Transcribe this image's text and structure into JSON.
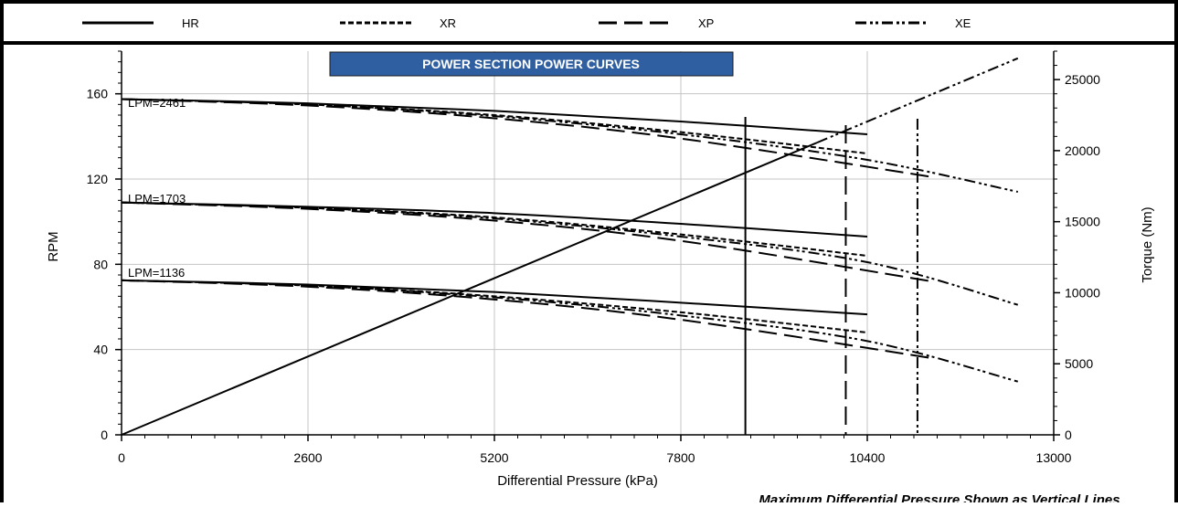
{
  "chart_data": {
    "type": "line",
    "title": "POWER SECTION POWER CURVES",
    "xlabel": "Differential Pressure (kPa)",
    "ylabel": "RPM",
    "y2label": "Torque (Nm)",
    "xlim": [
      0,
      13000
    ],
    "ylim": [
      0,
      180
    ],
    "y2lim": [
      0,
      27000
    ],
    "xticks": [
      0,
      2600,
      5200,
      7800,
      10400,
      13000
    ],
    "yticks": [
      0,
      40,
      80,
      120,
      160
    ],
    "y2ticks": [
      0,
      5000,
      10000,
      15000,
      20000,
      25000
    ],
    "grid": true,
    "legend_position": "top",
    "legend": [
      {
        "name": "HR",
        "dash": "solid"
      },
      {
        "name": "XR",
        "dash": "short-dash"
      },
      {
        "name": "XP",
        "dash": "long-dash"
      },
      {
        "name": "XE",
        "dash": "dash-dot-dot"
      }
    ],
    "flow_labels": [
      "LPM=2461",
      "LPM=1703",
      "LPM=1136"
    ],
    "rpm_curves": [
      {
        "model": "HR",
        "flow": "LPM=2461",
        "x": [
          0,
          2600,
          5200,
          7800,
          10400
        ],
        "y": [
          157.5,
          155.5,
          152,
          147,
          141
        ]
      },
      {
        "model": "XR",
        "flow": "LPM=2461",
        "x": [
          0,
          2600,
          5200,
          7800,
          10400
        ],
        "y": [
          157.5,
          155,
          150,
          142,
          132
        ]
      },
      {
        "model": "XP",
        "flow": "LPM=2461",
        "x": [
          0,
          2600,
          5200,
          7800,
          11300
        ],
        "y": [
          157.5,
          154.5,
          148.5,
          139,
          121
        ]
      },
      {
        "model": "XE",
        "flow": "LPM=2461",
        "x": [
          0,
          2600,
          5200,
          7800,
          10400,
          12500
        ],
        "y": [
          157.5,
          155,
          149.5,
          141,
          129,
          114
        ]
      },
      {
        "model": "HR",
        "flow": "LPM=1703",
        "x": [
          0,
          2600,
          5200,
          7800,
          10400
        ],
        "y": [
          109,
          107,
          104,
          99,
          93
        ]
      },
      {
        "model": "XR",
        "flow": "LPM=1703",
        "x": [
          0,
          2600,
          5200,
          7800,
          10400
        ],
        "y": [
          109,
          106.5,
          102,
          94,
          84
        ]
      },
      {
        "model": "XP",
        "flow": "LPM=1703",
        "x": [
          0,
          2600,
          5200,
          7800,
          11300
        ],
        "y": [
          109,
          106,
          100.5,
          91,
          72
        ]
      },
      {
        "model": "XE",
        "flow": "LPM=1703",
        "x": [
          0,
          2600,
          5200,
          7800,
          10400,
          12500
        ],
        "y": [
          109,
          106.5,
          101.5,
          93,
          81,
          61
        ]
      },
      {
        "model": "HR",
        "flow": "LPM=1136",
        "x": [
          0,
          2600,
          5200,
          7800,
          10400
        ],
        "y": [
          72.5,
          70.5,
          67,
          62,
          56.5
        ]
      },
      {
        "model": "XR",
        "flow": "LPM=1136",
        "x": [
          0,
          2600,
          5200,
          7800,
          10400
        ],
        "y": [
          72.5,
          70,
          65,
          57.5,
          48
        ]
      },
      {
        "model": "XP",
        "flow": "LPM=1136",
        "x": [
          0,
          2600,
          5200,
          7800,
          11300
        ],
        "y": [
          72.5,
          69.5,
          63.5,
          54,
          36
        ]
      },
      {
        "model": "XE",
        "flow": "LPM=1136",
        "x": [
          0,
          2600,
          5200,
          7800,
          10400,
          12500
        ],
        "y": [
          72.5,
          70,
          64.5,
          56,
          44,
          25
        ]
      }
    ],
    "torque_line": {
      "x": [
        0,
        12500
      ],
      "y": [
        0,
        26500
      ]
    },
    "max_pressure_lines": [
      {
        "model": "HR",
        "x": 8700
      },
      {
        "model": "XP",
        "x": 10100
      },
      {
        "model": "XE",
        "x": 11100
      }
    ],
    "note": "Maximum Differential Pressure Shown as Vertical Lines"
  }
}
